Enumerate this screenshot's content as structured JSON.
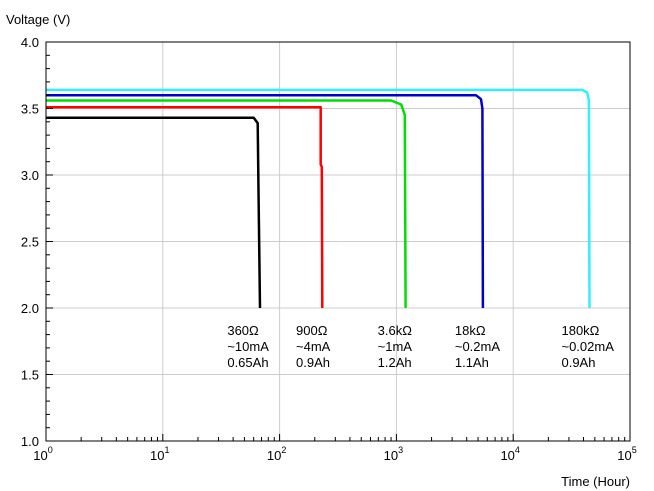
{
  "chart_data": {
    "type": "line",
    "ylabel": "Voltage (V)",
    "xlabel": "Time (Hour)",
    "x_scale": "log",
    "xlim": [
      1,
      100000
    ],
    "ylim": [
      1.0,
      4.0
    ],
    "grid": true,
    "x_ticks": [
      {
        "value": 1,
        "base": "10",
        "exp": "0"
      },
      {
        "value": 10,
        "base": "10",
        "exp": "1"
      },
      {
        "value": 100,
        "base": "10",
        "exp": "2"
      },
      {
        "value": 1000,
        "base": "10",
        "exp": "3"
      },
      {
        "value": 10000,
        "base": "10",
        "exp": "4"
      },
      {
        "value": 100000,
        "base": "10",
        "exp": "5"
      }
    ],
    "y_ticks": [
      {
        "value": 1.0,
        "label": "1.0"
      },
      {
        "value": 1.5,
        "label": "1.5"
      },
      {
        "value": 2.0,
        "label": "2.0"
      },
      {
        "value": 2.5,
        "label": "2.5"
      },
      {
        "value": 3.0,
        "label": "3.0"
      },
      {
        "value": 3.5,
        "label": "3.5"
      },
      {
        "value": 4.0,
        "label": "4.0"
      }
    ],
    "series": [
      {
        "color": "#000000",
        "points": [
          [
            1,
            3.43
          ],
          [
            60,
            3.43
          ],
          [
            65,
            3.39
          ],
          [
            66,
            2.88
          ],
          [
            68,
            2.0
          ]
        ],
        "annotation": {
          "x": 62,
          "lines": [
            "360Ω",
            "~10mA",
            "0.65Ah"
          ]
        }
      },
      {
        "color": "#ff0000",
        "points": [
          [
            1,
            3.51
          ],
          [
            225,
            3.51
          ],
          [
            225,
            3.08
          ],
          [
            230,
            3.06
          ],
          [
            232,
            2.0
          ]
        ],
        "annotation": {
          "x": 240,
          "lines": [
            "900Ω",
            "~4mA",
            "0.9Ah"
          ]
        }
      },
      {
        "color": "#00dd00",
        "points": [
          [
            1,
            3.56
          ],
          [
            900,
            3.56
          ],
          [
            1100,
            3.53
          ],
          [
            1180,
            3.45
          ],
          [
            1200,
            2.0
          ]
        ],
        "annotation": {
          "x": 1200,
          "lines": [
            "3.6kΩ",
            "~1mA",
            "1.2Ah"
          ]
        }
      },
      {
        "color": "#0000cc",
        "points": [
          [
            1,
            3.6
          ],
          [
            4800,
            3.6
          ],
          [
            5300,
            3.57
          ],
          [
            5450,
            3.5
          ],
          [
            5500,
            2.0
          ]
        ],
        "annotation": {
          "x": 5500,
          "lines": [
            "18kΩ",
            "~0.2mA",
            "1.1Ah"
          ]
        }
      },
      {
        "color": "#33eeff",
        "points": [
          [
            1,
            3.64
          ],
          [
            39000,
            3.64
          ],
          [
            43000,
            3.62
          ],
          [
            44500,
            3.56
          ],
          [
            45000,
            2.0
          ]
        ],
        "annotation": {
          "x": 45000,
          "lines": [
            "180kΩ",
            "~0.02mA",
            "0.9Ah"
          ]
        }
      }
    ]
  }
}
